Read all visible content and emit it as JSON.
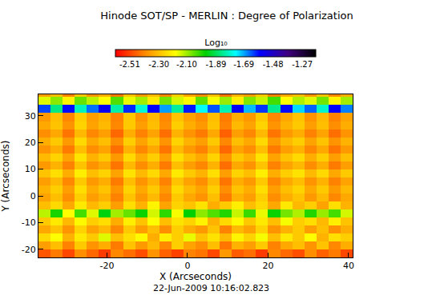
{
  "chart_data": {
    "type": "heatmap",
    "title": "Hinode SOT/SP - MERLIN : Degree of Polarization",
    "x_label": "X (Arcseconds)",
    "y_label": "Y (Arcseconds)",
    "annotation": "22-Jun-2009 10:16:02.823",
    "xlim": [
      -37,
      41
    ],
    "ylim": [
      -23,
      38
    ],
    "xticks": [
      -20,
      0,
      20,
      40
    ],
    "yticks": [
      -20,
      -10,
      0,
      10,
      20,
      30
    ],
    "colorbar": {
      "title": "Log₁₀",
      "range": [
        -2.61,
        -1.17
      ],
      "ticks": [
        -2.51,
        {
          "value": -2.3,
          "label": "-2.30"
        },
        {
          "value": -2.1,
          "label": "-2.10"
        },
        -1.89,
        -1.69,
        -1.48,
        -1.27
      ]
    },
    "x": [
      -35.5,
      -32.5,
      -29.5,
      -26.5,
      -23.5,
      -20.5,
      -17.5,
      -14.5,
      -11.5,
      -8.5,
      -5.5,
      -2.5,
      0.5,
      3.5,
      6.5,
      9.5,
      12.5,
      15.5,
      18.5,
      21.5,
      24.5,
      27.5,
      30.5,
      33.5,
      36.5,
      39.5
    ],
    "y": [
      -21.5,
      -18.5,
      -15.5,
      -12.5,
      -9.5,
      -6.5,
      -3.5,
      -0.5,
      2.5,
      5.5,
      8.5,
      11.5,
      14.5,
      17.5,
      20.5,
      23.5,
      26.5,
      29.5,
      32.5,
      35.5,
      38.5
    ],
    "cells": [
      [
        -2.48,
        -2.42,
        -2.5,
        -2.39,
        -2.45,
        -2.52,
        -2.4,
        -2.44,
        -2.49,
        -2.38,
        -2.46,
        -2.51,
        -2.41,
        -2.43,
        -2.5,
        -2.37,
        -2.47,
        -2.44,
        -2.52,
        -2.4,
        -2.45,
        -2.49,
        -2.39,
        -2.46,
        -2.42,
        -2.5
      ],
      [
        -2.36,
        -2.3,
        -2.41,
        -2.28,
        -2.38,
        -2.33,
        -2.42,
        -2.29,
        -2.37,
        -2.31,
        -2.4,
        -2.27,
        -2.35,
        -2.39,
        -2.3,
        -2.43,
        -2.32,
        -2.36,
        -2.28,
        -2.41,
        -2.34,
        -2.3,
        -2.38,
        -2.29,
        -2.4,
        -2.33
      ],
      [
        -2.25,
        -2.18,
        -2.32,
        -2.22,
        -2.28,
        -2.15,
        -2.3,
        -2.24,
        -2.19,
        -2.33,
        -2.21,
        -2.27,
        -2.16,
        -2.29,
        -2.23,
        -2.31,
        -2.2,
        -2.26,
        -2.17,
        -2.3,
        -2.22,
        -2.28,
        -2.18,
        -2.32,
        -2.24,
        -2.27
      ],
      [
        -2.34,
        -2.29,
        -2.38,
        -2.26,
        -2.35,
        -2.31,
        -2.4,
        -2.28,
        -2.36,
        -2.3,
        -2.39,
        -2.27,
        -2.33,
        -2.37,
        -2.29,
        -2.41,
        -2.31,
        -2.35,
        -2.26,
        -2.38,
        -2.32,
        -2.28,
        -2.36,
        -2.3,
        -2.39,
        -2.33
      ],
      [
        -2.28,
        -2.22,
        -2.31,
        -2.19,
        -2.27,
        -2.24,
        -2.33,
        -2.21,
        -2.29,
        -2.18,
        -2.3,
        -2.23,
        -2.26,
        -2.2,
        -2.32,
        -2.25,
        -2.19,
        -2.28,
        -2.22,
        -2.3,
        -2.17,
        -2.27,
        -2.24,
        -2.31,
        -2.21,
        -2.29
      ],
      [
        -2.12,
        -1.98,
        -2.18,
        -2.02,
        -2.15,
        -1.95,
        -2.1,
        -2.05,
        -1.97,
        -2.14,
        -2.0,
        -2.17,
        -1.96,
        -2.08,
        -2.03,
        -1.99,
        -2.13,
        -2.01,
        -2.16,
        -1.97,
        -2.06,
        -2.11,
        -1.99,
        -2.09,
        -2.02,
        -2.14
      ],
      [
        -2.3,
        -2.25,
        -2.34,
        -2.22,
        -2.31,
        -2.27,
        -2.36,
        -2.24,
        -2.32,
        -2.2,
        -2.35,
        -2.26,
        -2.29,
        -2.23,
        -2.33,
        -2.28,
        -2.21,
        -2.3,
        -2.25,
        -2.34,
        -2.22,
        -2.31,
        -2.27,
        -2.35,
        -2.24,
        -2.32
      ],
      [
        -2.35,
        -2.3,
        -2.39,
        -2.27,
        -2.36,
        -2.32,
        -2.41,
        -2.29,
        -2.37,
        -2.31,
        -2.4,
        -2.28,
        -2.34,
        -2.38,
        -2.3,
        -2.42,
        -2.32,
        -2.36,
        -2.27,
        -2.39,
        -2.33,
        -2.29,
        -2.37,
        -2.31,
        -2.4,
        -2.34
      ],
      [
        -2.32,
        -2.27,
        -2.36,
        -2.24,
        -2.33,
        -2.29,
        -2.38,
        -2.26,
        -2.34,
        -2.28,
        -2.37,
        -2.25,
        -2.31,
        -2.35,
        -2.27,
        -2.39,
        -2.29,
        -2.33,
        -2.24,
        -2.36,
        -2.3,
        -2.26,
        -2.34,
        -2.28,
        -2.37,
        -2.31
      ],
      [
        -2.36,
        -2.31,
        -2.4,
        -2.28,
        -2.37,
        -2.33,
        -2.42,
        -2.3,
        -2.38,
        -2.32,
        -2.41,
        -2.29,
        -2.35,
        -2.39,
        -2.31,
        -2.43,
        -2.33,
        -2.37,
        -2.28,
        -2.4,
        -2.34,
        -2.3,
        -2.38,
        -2.32,
        -2.41,
        -2.35
      ],
      [
        -2.29,
        -2.24,
        -2.33,
        -2.21,
        -2.3,
        -2.26,
        -2.35,
        -2.23,
        -2.31,
        -2.25,
        -2.34,
        -2.22,
        -2.28,
        -2.32,
        -2.24,
        -2.36,
        -2.26,
        -2.3,
        -2.21,
        -2.33,
        -2.27,
        -2.23,
        -2.31,
        -2.25,
        -2.34,
        -2.28
      ],
      [
        -2.37,
        -2.32,
        -2.41,
        -2.29,
        -2.38,
        -2.34,
        -2.43,
        -2.31,
        -2.39,
        -2.33,
        -2.42,
        -2.3,
        -2.36,
        -2.4,
        -2.32,
        -2.44,
        -2.34,
        -2.38,
        -2.29,
        -2.41,
        -2.35,
        -2.31,
        -2.39,
        -2.33,
        -2.42,
        -2.36
      ],
      [
        -2.31,
        -2.26,
        -2.35,
        -2.23,
        -2.32,
        -2.28,
        -2.37,
        -2.25,
        -2.33,
        -2.27,
        -2.36,
        -2.24,
        -2.3,
        -2.34,
        -2.26,
        -2.38,
        -2.28,
        -2.32,
        -2.23,
        -2.35,
        -2.29,
        -2.25,
        -2.33,
        -2.27,
        -2.36,
        -2.3
      ],
      [
        -2.38,
        -2.33,
        -2.42,
        -2.3,
        -2.39,
        -2.35,
        -2.44,
        -2.32,
        -2.4,
        -2.34,
        -2.43,
        -2.31,
        -2.37,
        -2.41,
        -2.33,
        -2.45,
        -2.35,
        -2.39,
        -2.3,
        -2.42,
        -2.36,
        -2.32,
        -2.4,
        -2.34,
        -2.43,
        -2.37
      ],
      [
        -2.33,
        -2.28,
        -2.37,
        -2.25,
        -2.34,
        -2.3,
        -2.39,
        -2.27,
        -2.35,
        -2.29,
        -2.38,
        -2.26,
        -2.32,
        -2.36,
        -2.28,
        -2.4,
        -2.3,
        -2.34,
        -2.25,
        -2.37,
        -2.31,
        -2.27,
        -2.35,
        -2.29,
        -2.38,
        -2.32
      ],
      [
        -2.39,
        -2.34,
        -2.43,
        -2.31,
        -2.4,
        -2.36,
        -2.45,
        -2.33,
        -2.41,
        -2.35,
        -2.44,
        -2.32,
        -2.38,
        -2.42,
        -2.34,
        -2.46,
        -2.36,
        -2.4,
        -2.31,
        -2.43,
        -2.37,
        -2.33,
        -2.41,
        -2.35,
        -2.44,
        -2.38
      ],
      [
        -2.34,
        -2.29,
        -2.38,
        -2.26,
        -2.35,
        -2.31,
        -2.4,
        -2.28,
        -2.36,
        -2.3,
        -2.39,
        -2.27,
        -2.33,
        -2.37,
        -2.29,
        -2.41,
        -2.31,
        -2.35,
        -2.26,
        -2.38,
        -2.32,
        -2.28,
        -2.36,
        -2.3,
        -2.39,
        -2.33
      ],
      [
        -2.37,
        -2.3,
        -2.4,
        -2.27,
        -2.36,
        -2.32,
        -2.41,
        -2.28,
        -2.38,
        -2.31,
        -2.4,
        -2.29,
        -2.35,
        -2.39,
        -2.3,
        -2.42,
        -2.33,
        -2.37,
        -2.28,
        -2.4,
        -2.34,
        -2.29,
        -2.38,
        -2.31,
        -2.41,
        -2.35
      ],
      [
        -1.62,
        -1.85,
        -1.58,
        -1.8,
        -1.65,
        -1.55,
        -1.82,
        -1.6,
        -1.78,
        -1.57,
        -1.68,
        -1.83,
        -1.59,
        -1.75,
        -1.63,
        -1.81,
        -1.56,
        -1.7,
        -1.61,
        -1.84,
        -1.58,
        -1.72,
        -1.64,
        -1.79,
        -1.57,
        -1.66
      ],
      [
        -2.15,
        -2.08,
        -2.2,
        -2.05,
        -2.12,
        -2.18,
        -2.03,
        -2.16,
        -2.1,
        -2.22,
        -2.06,
        -2.14,
        -2.19,
        -2.04,
        -2.17,
        -2.09,
        -2.21,
        -2.07,
        -2.13,
        -2.02,
        -2.18,
        -2.11,
        -2.15,
        -2.06,
        -2.2,
        -2.1
      ],
      [
        -2.36,
        -2.3,
        -2.41,
        -2.28,
        -2.38,
        -2.33,
        -2.42,
        -2.29,
        -2.37,
        -2.31,
        -2.4,
        -2.27,
        -2.35,
        -2.39,
        -2.3,
        -2.43,
        -2.32,
        -2.36,
        -2.28,
        -2.41,
        -2.34,
        -2.3,
        -2.38,
        -2.29,
        -2.4,
        -2.33
      ]
    ]
  }
}
